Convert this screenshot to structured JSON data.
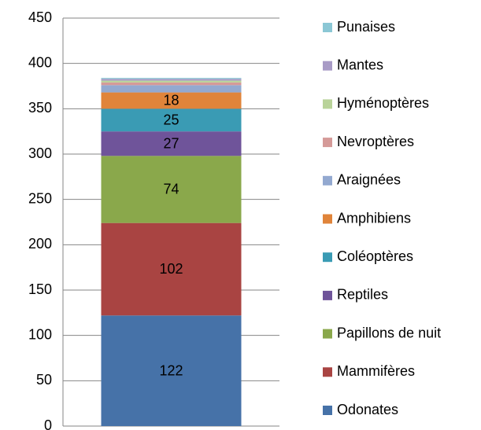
{
  "chart_data": {
    "type": "stacked_bar",
    "categories": [
      null
    ],
    "series": [
      {
        "name": "Odonates",
        "color": "#4672a8",
        "values": [
          122
        ],
        "data_labels": true
      },
      {
        "name": "Mammifères",
        "color": "#a94442",
        "values": [
          102
        ],
        "data_labels": true
      },
      {
        "name": "Papillons de nuit",
        "color": "#8aa84b",
        "values": [
          74
        ],
        "data_labels": true
      },
      {
        "name": "Reptiles",
        "color": "#6f549a",
        "values": [
          27
        ],
        "data_labels": true
      },
      {
        "name": "Coléoptères",
        "color": "#3a9bb4",
        "values": [
          25
        ],
        "data_labels": true
      },
      {
        "name": "Amphibiens",
        "color": "#e0843a",
        "values": [
          18
        ],
        "data_labels": true
      },
      {
        "name": "Araignées",
        "color": "#93a9d0",
        "values": [
          8
        ],
        "data_labels": false
      },
      {
        "name": "Nevroptères",
        "color": "#d59a98",
        "values": [
          3
        ],
        "data_labels": false
      },
      {
        "name": "Hyménoptères",
        "color": "#b9d399",
        "values": [
          2
        ],
        "data_labels": false
      },
      {
        "name": "Mantes",
        "color": "#a89bc6",
        "values": [
          2
        ],
        "data_labels": false
      },
      {
        "name": "Punaises",
        "color": "#8bc7d5",
        "values": [
          1
        ],
        "data_labels": false
      }
    ],
    "ylim": [
      0,
      450
    ],
    "yticks": [
      0,
      50,
      100,
      150,
      200,
      250,
      300,
      350,
      400,
      450
    ],
    "grid": true,
    "legend": "right"
  }
}
